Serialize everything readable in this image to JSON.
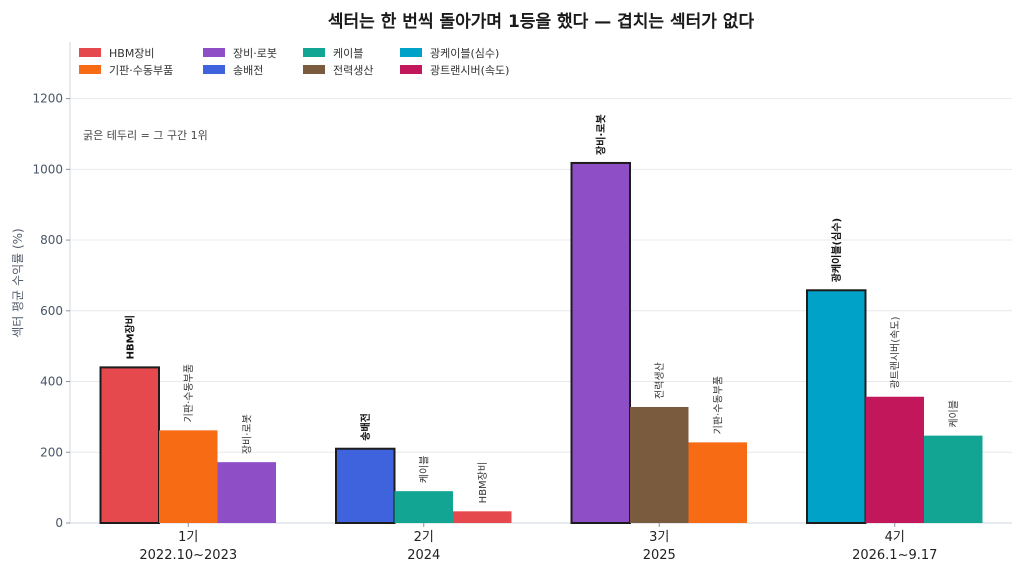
{
  "chart_data": {
    "type": "bar",
    "title": "섹터는 한 번씩 돌아가며 1등을 했다 — 겹치는 섹터가 없다",
    "ylabel": "섹터 평균 수익률 (%)",
    "ylim": [
      0,
      1360
    ],
    "yticks": [
      0,
      200,
      400,
      600,
      800,
      1000,
      1200
    ],
    "grid": true,
    "legend_position": "top-left",
    "note": "굵은 테두리 = 그 구간 1위",
    "sectors": [
      {
        "name": "HBM장비",
        "color": "#e5484d"
      },
      {
        "name": "기판·수동부품",
        "color": "#f76b15"
      },
      {
        "name": "장비·로봇",
        "color": "#8e4ec6"
      },
      {
        "name": "송배전",
        "color": "#3e63dd"
      },
      {
        "name": "케이블",
        "color": "#12a594"
      },
      {
        "name": "전력생산",
        "color": "#7b5b3e"
      },
      {
        "name": "광케이블(심수)",
        "color": "#00a2c7"
      },
      {
        "name": "광트랜시버(속도)",
        "color": "#c2185b"
      }
    ],
    "groups": [
      {
        "label": "1기",
        "sublabel": "2022.10~2023",
        "bars": [
          {
            "sector": "HBM장비",
            "value": 440,
            "top": true
          },
          {
            "sector": "기판·수동부품",
            "value": 262
          },
          {
            "sector": "장비·로봇",
            "value": 172
          }
        ]
      },
      {
        "label": "2기",
        "sublabel": "2024",
        "bars": [
          {
            "sector": "송배전",
            "value": 210,
            "top": true
          },
          {
            "sector": "케이블",
            "value": 90
          },
          {
            "sector": "HBM장비",
            "value": 33
          }
        ]
      },
      {
        "label": "3기",
        "sublabel": "2025",
        "bars": [
          {
            "sector": "장비·로봇",
            "value": 1018,
            "top": true
          },
          {
            "sector": "전력생산",
            "value": 328
          },
          {
            "sector": "기판·수동부품",
            "value": 228
          }
        ]
      },
      {
        "label": "4기",
        "sublabel": "2026.1~9.17",
        "bars": [
          {
            "sector": "광케이블(심수)",
            "value": 658,
            "top": true
          },
          {
            "sector": "광트랜시버(속도)",
            "value": 357
          },
          {
            "sector": "케이블",
            "value": 247
          }
        ]
      }
    ]
  }
}
